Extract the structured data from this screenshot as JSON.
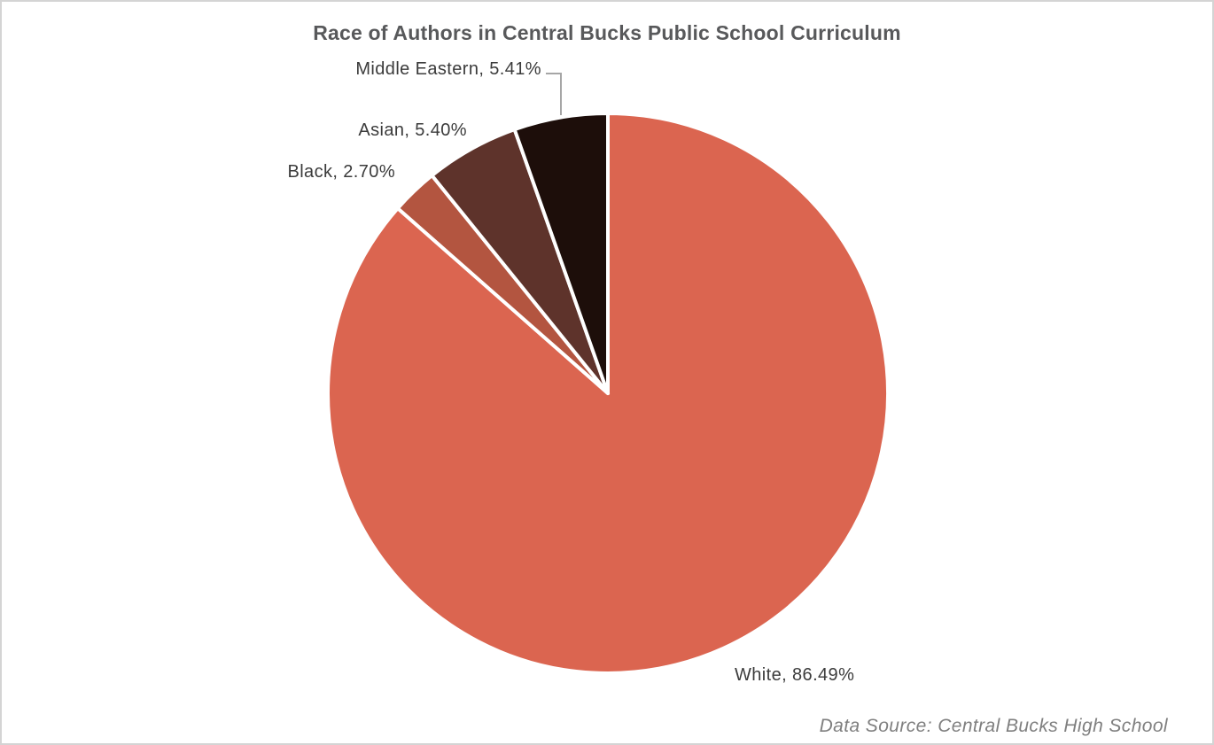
{
  "chart_data": {
    "type": "pie",
    "title": "Race of Authors in Central Bucks Public School Curriculum",
    "slices": [
      {
        "label": "White",
        "value": 86.49,
        "display": "White, 86.49%",
        "color": "#DB6550"
      },
      {
        "label": "Black",
        "value": 2.7,
        "display": "Black, 2.70%",
        "color": "#B35540"
      },
      {
        "label": "Asian",
        "value": 5.4,
        "display": "Asian, 5.40%",
        "color": "#5E332B"
      },
      {
        "label": "Middle Eastern",
        "value": 5.41,
        "display": "Middle Eastern, 5.41%",
        "color": "#1D0E0A"
      }
    ],
    "start_angle_deg": 0,
    "direction": "clockwise",
    "separator_color": "#FFFFFF",
    "leader_color": "#A6A6A6",
    "legend_position": "none",
    "labels_position": "outside",
    "source_note": "Data Source: Central Bucks High School"
  },
  "colors": {
    "title": "#58595B",
    "label": "#3B3B3B",
    "source": "#7F7F7F",
    "canvas_border": "#D4D4D4",
    "background": "#FFFFFF"
  }
}
